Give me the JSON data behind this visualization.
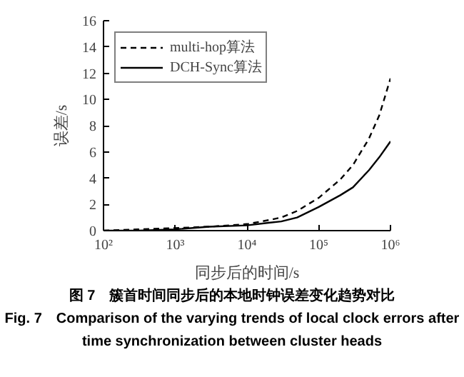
{
  "chart_data": {
    "type": "line",
    "title": "图 7　簇首时间同步后的本地时钟误差变化趋势对比",
    "subtitle": "Fig. 7　Comparison of the varying trends of local clock errors after time synchronization between cluster heads",
    "xlabel": "同步后的时间/s",
    "ylabel": "误差/s",
    "log": "x",
    "xlim": [
      100,
      1000000
    ],
    "xticks": [
      {
        "value": 100,
        "label": "10²"
      },
      {
        "value": 1000,
        "label": "10³"
      },
      {
        "value": 10000,
        "label": "10⁴"
      },
      {
        "value": 100000,
        "label": "10⁵"
      },
      {
        "value": 1000000,
        "label": "10⁶"
      }
    ],
    "ylim": [
      0,
      16
    ],
    "yticks": [
      0,
      2,
      4,
      6,
      8,
      10,
      12,
      14,
      16
    ],
    "grid": false,
    "legend": "top left",
    "series": [
      {
        "name": "multi-hop算法",
        "color": "#000000",
        "line_style": "dashed",
        "x": [
          100,
          300,
          1000,
          3000,
          10000,
          20000,
          30000,
          50000,
          100000,
          200000,
          300000,
          500000,
          700000,
          1000000
        ],
        "values": [
          0,
          0.1,
          0.2,
          0.3,
          0.5,
          0.8,
          1.0,
          1.5,
          2.5,
          3.9,
          5.0,
          7.0,
          8.8,
          11.6
        ]
      },
      {
        "name": "DCH-Sync算法",
        "color": "#000000",
        "line_style": "solid",
        "x": [
          100,
          300,
          1000,
          3000,
          10000,
          20000,
          30000,
          50000,
          100000,
          200000,
          300000,
          500000,
          700000,
          1000000
        ],
        "values": [
          0,
          0.0,
          0.1,
          0.3,
          0.4,
          0.6,
          0.7,
          1.0,
          1.8,
          2.7,
          3.3,
          4.6,
          5.6,
          6.8
        ]
      }
    ]
  }
}
